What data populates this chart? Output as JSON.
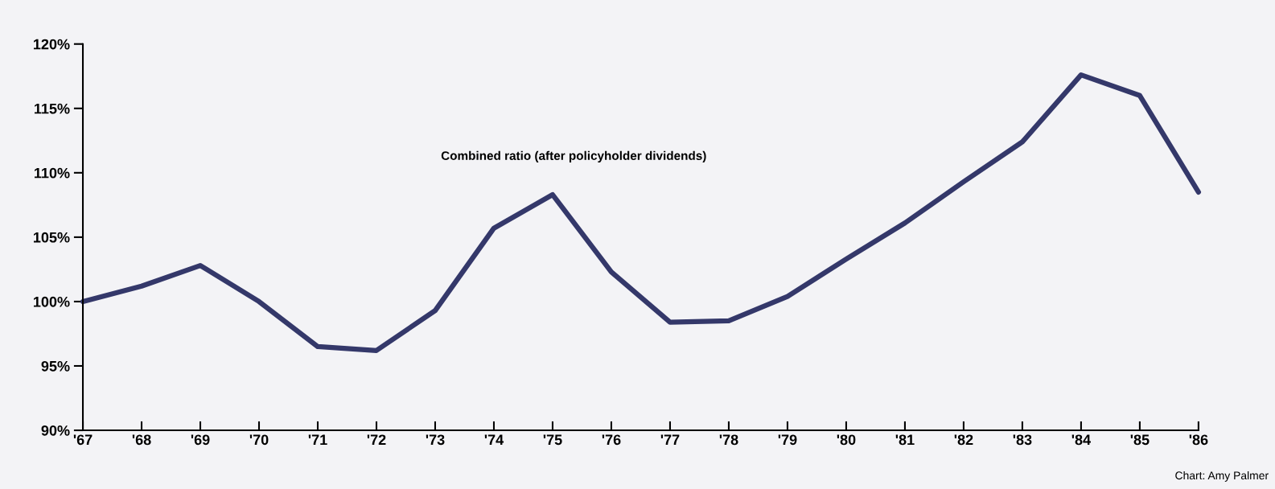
{
  "chart_data": {
    "type": "line",
    "categories": [
      "'67",
      "'68",
      "'69",
      "'70",
      "'71",
      "'72",
      "'73",
      "'74",
      "'75",
      "'76",
      "'77",
      "'78",
      "'79",
      "'80",
      "'81",
      "'82",
      "'83",
      "'84",
      "'85",
      "'86"
    ],
    "series": [
      {
        "color": "#34386a",
        "values": [
          100.0,
          101.2,
          102.8,
          100.0,
          96.5,
          96.2,
          99.3,
          105.7,
          108.3,
          102.3,
          98.4,
          98.5,
          100.4,
          103.3,
          106.1,
          109.3,
          112.4,
          117.6,
          116.0,
          108.5
        ]
      }
    ],
    "ylim": [
      90,
      120
    ],
    "yticks": [
      {
        "value": 90,
        "label": "90%"
      },
      {
        "value": 95,
        "label": "95%"
      },
      {
        "value": 100,
        "label": "100%"
      },
      {
        "value": 105,
        "label": "105%"
      },
      {
        "value": 110,
        "label": "110%"
      },
      {
        "value": 115,
        "label": "115%"
      },
      {
        "value": 120,
        "label": "120%"
      }
    ],
    "grid": false,
    "marker": "none",
    "line_style": "solid",
    "annotations": [
      "Combined ratio (after policyholder dividends)",
      "Chart: Amy Palmer"
    ]
  }
}
